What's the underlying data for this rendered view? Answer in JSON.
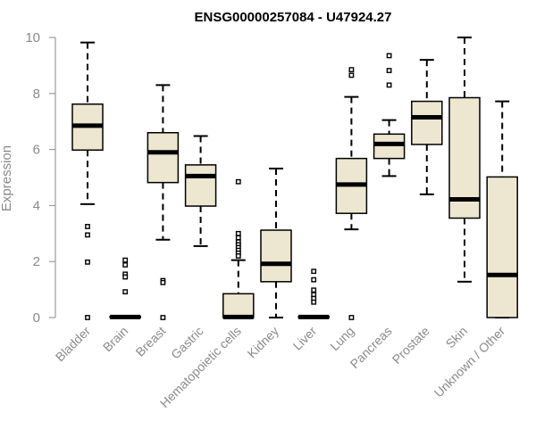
{
  "chart_data": {
    "type": "boxplot",
    "title": "ENSG00000257084 - U47924.27",
    "xlabel": "",
    "ylabel": "Expression",
    "ylim": [
      0,
      10
    ],
    "yticks": [
      0,
      2,
      4,
      6,
      8,
      10
    ],
    "colors": {
      "box_fill": "#ede6d0",
      "stroke": "#000000",
      "axis": "#8a8a8a"
    },
    "categories": [
      "Bladder",
      "Brain",
      "Breast",
      "Gastric",
      "Hematopoietic cells",
      "Kidney",
      "Liver",
      "Lung",
      "Pancreas",
      "Prostate",
      "Skin",
      "Unknown / Other"
    ],
    "boxes": [
      {
        "name": "Bladder",
        "whisker_low": 4.05,
        "q1": 5.98,
        "median": 6.85,
        "q3": 7.62,
        "whisker_high": 9.82,
        "outliers": [
          3.25,
          2.95,
          1.98,
          0.0
        ]
      },
      {
        "name": "Brain",
        "whisker_low": 0.0,
        "q1": 0.0,
        "median": 0.02,
        "q3": 0.04,
        "whisker_high": 0.06,
        "outliers": [
          2.05,
          1.88,
          1.55,
          1.45,
          0.92
        ]
      },
      {
        "name": "Breast",
        "whisker_low": 2.78,
        "q1": 4.82,
        "median": 5.9,
        "q3": 6.6,
        "whisker_high": 8.3,
        "outliers": [
          1.32,
          1.25,
          0.0
        ]
      },
      {
        "name": "Gastric",
        "whisker_low": 2.55,
        "q1": 3.98,
        "median": 5.05,
        "q3": 5.45,
        "whisker_high": 6.48,
        "outliers": []
      },
      {
        "name": "Hematopoietic cells",
        "whisker_low": 0.0,
        "q1": 0.0,
        "median": 0.02,
        "q3": 0.85,
        "whisker_high": 2.05,
        "outliers": [
          4.85,
          3.0,
          2.85,
          2.7,
          2.6,
          2.5,
          2.4,
          2.3,
          2.2
        ]
      },
      {
        "name": "Kidney",
        "whisker_low": 0.0,
        "q1": 1.28,
        "median": 1.92,
        "q3": 3.12,
        "whisker_high": 5.32,
        "outliers": []
      },
      {
        "name": "Liver",
        "whisker_low": 0.0,
        "q1": 0.0,
        "median": 0.02,
        "q3": 0.04,
        "whisker_high": 0.06,
        "outliers": [
          1.65,
          1.35,
          0.98,
          0.82,
          0.68,
          0.55
        ]
      },
      {
        "name": "Lung",
        "whisker_low": 3.15,
        "q1": 3.72,
        "median": 4.75,
        "q3": 5.68,
        "whisker_high": 7.88,
        "outliers": [
          8.85,
          8.65,
          0.0
        ]
      },
      {
        "name": "Pancreas",
        "whisker_low": 5.05,
        "q1": 5.68,
        "median": 6.2,
        "q3": 6.55,
        "whisker_high": 7.05,
        "outliers": [
          9.35,
          8.82,
          8.3
        ]
      },
      {
        "name": "Prostate",
        "whisker_low": 4.4,
        "q1": 6.18,
        "median": 7.15,
        "q3": 7.72,
        "whisker_high": 9.2,
        "outliers": []
      },
      {
        "name": "Skin",
        "whisker_low": 1.28,
        "q1": 3.55,
        "median": 4.22,
        "q3": 7.85,
        "whisker_high": 10.0,
        "outliers": []
      },
      {
        "name": "Unknown / Other",
        "whisker_low": 0.0,
        "q1": 0.0,
        "median": 1.52,
        "q3": 5.02,
        "whisker_high": 7.72,
        "outliers": []
      }
    ]
  }
}
